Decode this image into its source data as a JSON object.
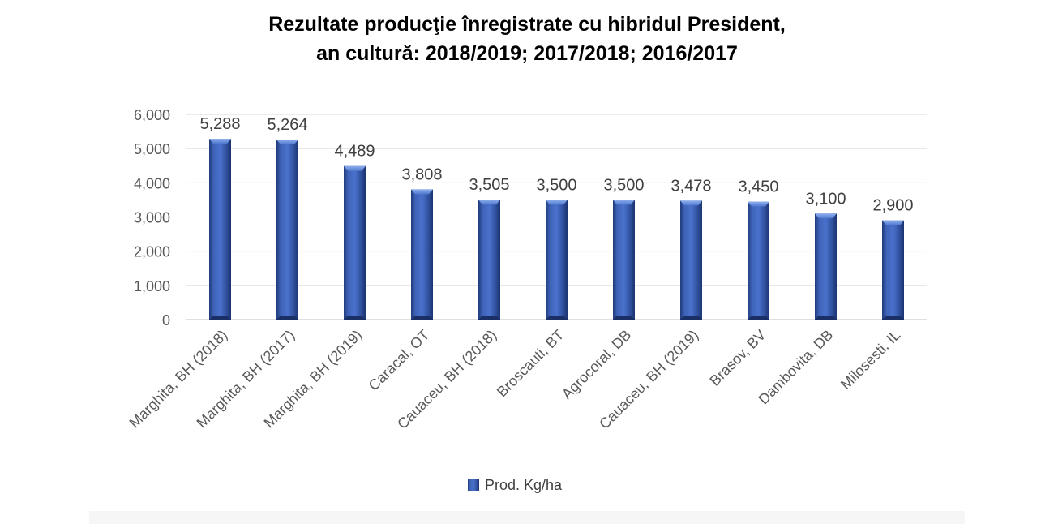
{
  "chart_data": {
    "type": "bar",
    "title_lines": [
      "Rezultate producţie înregistrate cu hibridul President,",
      "an cultură: 2018/2019; 2017/2018; 2016/2017"
    ],
    "categories": [
      "Marghita, BH (2018)",
      "Marghita, BH (2017)",
      "Marghita, BH (2019)",
      "Caracal, OT",
      "Cauaceu, BH (2018)",
      "Broscauti, BT",
      "Agrocoral, DB",
      "Cauaceu, BH (2019)",
      "Brasov, BV",
      "Dambovita, DB",
      "Milosesti, IL"
    ],
    "series": [
      {
        "name": "Prod. Kg/ha",
        "values": [
          5288,
          5264,
          4489,
          3808,
          3505,
          3500,
          3500,
          3478,
          3450,
          3100,
          2900
        ],
        "data_labels": [
          "5,288",
          "5,264",
          "4,489",
          "3,808",
          "3,505",
          "3,500",
          "3,500",
          "3,478",
          "3,450",
          "3,100",
          "2,900"
        ],
        "color": "#3556a8"
      }
    ],
    "ylim": [
      0,
      6000
    ],
    "yticks": [
      0,
      1000,
      2000,
      3000,
      4000,
      5000,
      6000
    ],
    "ytick_labels": [
      "0",
      "1,000",
      "2,000",
      "3,000",
      "4,000",
      "5,000",
      "6,000"
    ],
    "grid": true,
    "legend_position": "bottom"
  }
}
